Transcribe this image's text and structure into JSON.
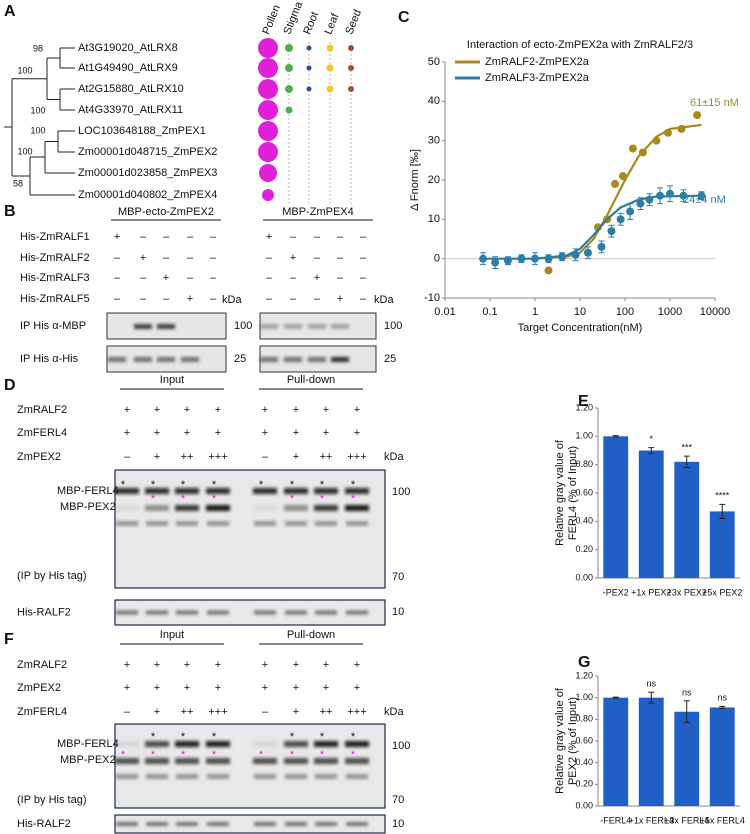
{
  "panel_labels": [
    "A",
    "B",
    "C",
    "D",
    "E",
    "F",
    "G"
  ],
  "tree": {
    "tissues": [
      "Pollen",
      "Stigma",
      "Root",
      "Leaf",
      "Seed"
    ],
    "leaves": [
      "At3G19020_AtLRX8",
      "At1G49490_AtLRX9",
      "At2G15880_AtLRX10",
      "At4G33970_AtLRX11",
      "LOC103648188_ZmPEX1",
      "Zm00001d048715_ZmPEX2",
      "Zm00001d023858_ZmPEX3",
      "Zm00001d040802_ZmPEX4"
    ],
    "bootstrap": [
      98,
      100,
      100,
      100,
      100,
      58
    ]
  },
  "blot_b": {
    "headers": [
      "MBP-ecto-ZmPEX2",
      "MBP-ZmPEX4"
    ],
    "rows": [
      {
        "label": "His-ZmRALF1",
        "signs": [
          "+",
          "–",
          "–",
          "–",
          "–",
          "+",
          "–",
          "–",
          "–",
          "–"
        ]
      },
      {
        "label": "His-ZmRALF2",
        "signs": [
          "–",
          "+",
          "–",
          "–",
          "–",
          "–",
          "+",
          "–",
          "–",
          "–"
        ]
      },
      {
        "label": "His-ZmRALF3",
        "signs": [
          "–",
          "–",
          "+",
          "–",
          "–",
          "–",
          "–",
          "+",
          "–",
          "–"
        ]
      },
      {
        "label": "His-ZmRALF5",
        "signs": [
          "–",
          "–",
          "–",
          "+",
          "–",
          "–",
          "–",
          "–",
          "+",
          "–"
        ]
      }
    ],
    "kda": "kDa",
    "blots": [
      {
        "label": "IP His α-MBP",
        "marker": 100
      },
      {
        "label": "IP His α-His",
        "marker": 25
      }
    ]
  },
  "blot_d": {
    "group_headers": [
      "Input",
      "Pull-down"
    ],
    "rows": [
      {
        "label": "ZmRALF2",
        "signs": [
          "+",
          "+",
          "+",
          "+",
          "+",
          "+",
          "+",
          "+"
        ]
      },
      {
        "label": "ZmFERL4",
        "signs": [
          "+",
          "+",
          "+",
          "+",
          "+",
          "+",
          "+",
          "+"
        ]
      },
      {
        "label": "ZmPEX2",
        "signs": [
          "–",
          "+",
          "++",
          "+++",
          "–",
          "+",
          "++",
          "+++"
        ]
      }
    ],
    "kda": "kDa",
    "band_labels": [
      "MBP-FERL4",
      "MBP-PEX2"
    ],
    "ferl4_stars": [
      "*",
      "*",
      "*",
      "*",
      "*",
      "*",
      "*",
      "*"
    ],
    "pex2_stars": [
      null,
      "*",
      "*",
      "*",
      null,
      "*",
      "*",
      "*"
    ],
    "ip_note": "(IP by His tag)",
    "loading_label": "His-RALF2",
    "markers": [
      100,
      70,
      10
    ]
  },
  "blot_f": {
    "group_headers": [
      "Input",
      "Pull-down"
    ],
    "rows": [
      {
        "label": "ZmRALF2",
        "signs": [
          "+",
          "+",
          "+",
          "+",
          "+",
          "+",
          "+",
          "+"
        ]
      },
      {
        "label": "ZmPEX2",
        "signs": [
          "+",
          "+",
          "+",
          "+",
          "+",
          "+",
          "+",
          "+"
        ]
      },
      {
        "label": "ZmFERL4",
        "signs": [
          "–",
          "+",
          "++",
          "+++",
          "–",
          "+",
          "++",
          "+++"
        ]
      }
    ],
    "kda": "kDa",
    "band_labels": [
      "MBP-FERL4",
      "MBP-PEX2"
    ],
    "ferl4_stars": [
      null,
      "*",
      "*",
      "*",
      null,
      "*",
      "*",
      "*"
    ],
    "pex2_stars": [
      "*",
      "*",
      "*",
      "*",
      "*",
      "*",
      "*",
      "*"
    ],
    "ip_note": "(IP by His tag)",
    "loading_label": "His-RALF2",
    "markers": [
      100,
      70,
      10
    ]
  },
  "chart_data": [
    {
      "type": "scatter",
      "title": "Interaction of ecto-ZmPEX2a with ZmRALF2/3",
      "xlabel": "Target Concentration(nM)",
      "ylabel": "Δ Fnorm [‰]",
      "xscale": "log",
      "xlim": [
        0.01,
        10000
      ],
      "xticks": [
        0.01,
        0.1,
        1,
        10,
        100,
        1000,
        10000
      ],
      "ylim": [
        -10,
        50
      ],
      "yticks": [
        -10,
        0,
        10,
        20,
        30,
        40,
        50
      ],
      "series": [
        {
          "name": "ZmRALF2-ZmPEX2a",
          "color": "#a88a1c",
          "annotation": "61±15 nM",
          "x": [
            2,
            25,
            40,
            60,
            90,
            150,
            250,
            500,
            900,
            1800,
            4000
          ],
          "values": [
            -3,
            8,
            10,
            19,
            21,
            28,
            27,
            30,
            32,
            33,
            36.5
          ],
          "fit_x": [
            1,
            5,
            10,
            20,
            40,
            60,
            100,
            200,
            500,
            1000,
            5000
          ],
          "fit_values": [
            0,
            0.5,
            1.5,
            5,
            11,
            15,
            20,
            26,
            31,
            33,
            34
          ]
        },
        {
          "name": "ZmRALF3-ZmPEX2a",
          "color": "#2d7ea6",
          "annotation": "24±4 nM",
          "x": [
            0.07,
            0.13,
            0.25,
            0.5,
            1,
            2,
            4,
            8,
            15,
            30,
            50,
            80,
            130,
            220,
            350,
            600,
            1000,
            2000,
            5000
          ],
          "values": [
            0,
            -1,
            -0.5,
            0,
            0,
            0,
            0.5,
            1,
            1.5,
            3,
            7,
            10,
            12,
            14,
            15,
            16,
            16.5,
            16,
            16
          ],
          "errors": [
            1.5,
            1.5,
            1,
            1,
            1.5,
            1,
            1,
            1.5,
            1.5,
            1.5,
            1.5,
            1.5,
            2,
            1.5,
            1.5,
            2,
            2,
            1.5,
            1
          ],
          "fit_x": [
            0.07,
            1,
            5,
            10,
            20,
            40,
            80,
            200,
            500,
            5000
          ],
          "fit_values": [
            0,
            0,
            0.8,
            2.5,
            6,
            10,
            13,
            15,
            15.8,
            16
          ]
        }
      ]
    },
    {
      "type": "bar",
      "ylabel": [
        "Relative gray value of",
        "FERL4 (% of Input)"
      ],
      "categories": [
        "-PEX2",
        "+1x PEX2",
        "+3x PEX2",
        "+5x PEX2"
      ],
      "values": [
        1.0,
        0.9,
        0.82,
        0.47
      ],
      "errors": [
        0.005,
        0.02,
        0.04,
        0.05
      ],
      "annotations": [
        null,
        "*",
        "***",
        "****"
      ],
      "color": "#1f5fc6",
      "ylim": [
        0,
        1.2
      ],
      "yticks": [
        {
          "value": 0,
          "label": "0.00"
        },
        {
          "value": 0.2,
          "label": "0.20"
        },
        {
          "value": 0.4,
          "label": "0.40"
        },
        {
          "value": 0.6,
          "label": "0.60"
        },
        {
          "value": 0.8,
          "label": "0.80"
        },
        {
          "value": 1.0,
          "label": "1.00"
        },
        {
          "value": 1.2,
          "label": "1.20"
        }
      ]
    },
    {
      "type": "bar",
      "ylabel": [
        "Relative gray value of",
        "PEX2 (% of Input)"
      ],
      "categories": [
        "-FERL4",
        "+1x FERL4",
        "+3x FERL4",
        "+5x FERL4"
      ],
      "values": [
        1.0,
        1.0,
        0.87,
        0.91
      ],
      "errors": [
        0.005,
        0.05,
        0.1,
        0.01
      ],
      "annotations": [
        null,
        "ns",
        "ns",
        "ns"
      ],
      "color": "#1f5fc6",
      "ylim": [
        0,
        1.2
      ],
      "yticks": [
        {
          "value": 0,
          "label": "0.00"
        },
        {
          "value": 0.2,
          "label": "0.20"
        },
        {
          "value": 0.4,
          "label": "0.40"
        },
        {
          "value": 0.6,
          "label": "0.60"
        },
        {
          "value": 0.8,
          "label": "0.80"
        },
        {
          "value": 1.0,
          "label": "1.00"
        },
        {
          "value": 1.2,
          "label": "1.20"
        }
      ]
    }
  ]
}
